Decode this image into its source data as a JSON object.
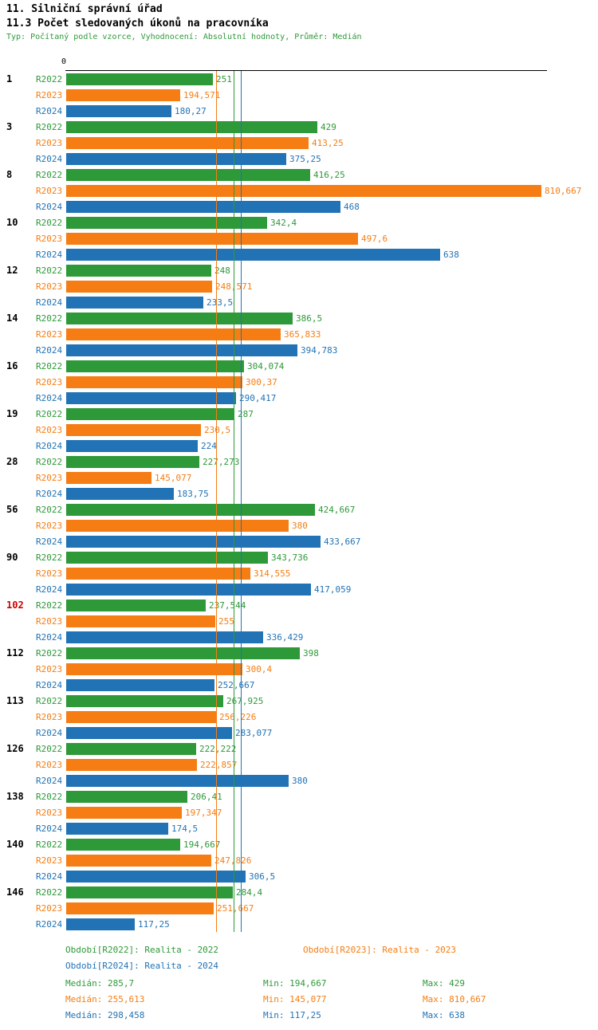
{
  "header": {
    "title_line1": "11. Silniční správní úřad",
    "title_line2": "11.3 Počet sledovaných úkonů na pracovníka",
    "subtitle": "Typ: Počítaný podle vzorce, Vyhodnocení: Absolutní hodnoty, Průměr: Medián"
  },
  "colors": {
    "r2022": "#2e9939",
    "r2023": "#f57d14",
    "r2024": "#2273b5",
    "highlight_label": "#cc0000",
    "axis": "#000000"
  },
  "chart_data": {
    "type": "bar",
    "orientation": "horizontal",
    "title": "11.3 Počet sledovaných úkonů na pracovníka",
    "xlim": [
      0,
      820
    ],
    "origin_label": "0",
    "grid": false,
    "legend_position": "bottom",
    "series": [
      "R2022",
      "R2023",
      "R2024"
    ],
    "groups": [
      {
        "label": "1",
        "highlight": false,
        "values": [
          251,
          194.571,
          180.27
        ],
        "display": [
          "251",
          "194,571",
          "180,27"
        ]
      },
      {
        "label": "3",
        "highlight": false,
        "values": [
          429,
          413.25,
          375.25
        ],
        "display": [
          "429",
          "413,25",
          "375,25"
        ]
      },
      {
        "label": "8",
        "highlight": false,
        "values": [
          416.25,
          810.667,
          468
        ],
        "display": [
          "416,25",
          "810,667",
          "468"
        ]
      },
      {
        "label": "10",
        "highlight": false,
        "values": [
          342.4,
          497.6,
          638
        ],
        "display": [
          "342,4",
          "497,6",
          "638"
        ]
      },
      {
        "label": "12",
        "highlight": false,
        "values": [
          248,
          248.571,
          233.5
        ],
        "display": [
          "248",
          "248,571",
          "233,5"
        ]
      },
      {
        "label": "14",
        "highlight": false,
        "values": [
          386.5,
          365.833,
          394.783
        ],
        "display": [
          "386,5",
          "365,833",
          "394,783"
        ]
      },
      {
        "label": "16",
        "highlight": false,
        "values": [
          304.074,
          300.37,
          290.417
        ],
        "display": [
          "304,074",
          "300,37",
          "290,417"
        ]
      },
      {
        "label": "19",
        "highlight": false,
        "values": [
          287,
          230.5,
          224
        ],
        "display": [
          "287",
          "230,5",
          "224"
        ]
      },
      {
        "label": "28",
        "highlight": false,
        "values": [
          227.273,
          145.077,
          183.75
        ],
        "display": [
          "227,273",
          "145,077",
          "183,75"
        ]
      },
      {
        "label": "56",
        "highlight": false,
        "values": [
          424.667,
          380,
          433.667
        ],
        "display": [
          "424,667",
          "380",
          "433,667"
        ]
      },
      {
        "label": "90",
        "highlight": false,
        "values": [
          343.736,
          314.555,
          417.059
        ],
        "display": [
          "343,736",
          "314,555",
          "417,059"
        ]
      },
      {
        "label": "102",
        "highlight": true,
        "values": [
          237.544,
          255,
          336.429
        ],
        "display": [
          "237,544",
          "255",
          "336,429"
        ]
      },
      {
        "label": "112",
        "highlight": false,
        "values": [
          398,
          300.4,
          252.667
        ],
        "display": [
          "398",
          "300,4",
          "252,667"
        ]
      },
      {
        "label": "113",
        "highlight": false,
        "values": [
          267.925,
          256.226,
          283.077
        ],
        "display": [
          "267,925",
          "256,226",
          "283,077"
        ]
      },
      {
        "label": "126",
        "highlight": false,
        "values": [
          222.222,
          222.857,
          380
        ],
        "display": [
          "222,222",
          "222,857",
          "380"
        ]
      },
      {
        "label": "138",
        "highlight": false,
        "values": [
          206.41,
          197.347,
          174.5
        ],
        "display": [
          "206,41",
          "197,347",
          "174,5"
        ]
      },
      {
        "label": "140",
        "highlight": false,
        "values": [
          194.667,
          247.826,
          306.5
        ],
        "display": [
          "194,667",
          "247,826",
          "306,5"
        ]
      },
      {
        "label": "146",
        "highlight": false,
        "values": [
          284.4,
          251.667,
          117.25
        ],
        "display": [
          "284,4",
          "251,667",
          "117,25"
        ]
      }
    ],
    "medians": [
      {
        "series": "R2022",
        "value": 285.7
      },
      {
        "series": "R2023",
        "value": 255.613
      },
      {
        "series": "R2024",
        "value": 298.458
      }
    ]
  },
  "legend": [
    {
      "series": "R2022",
      "label": "Období[R2022]: Realita - 2022"
    },
    {
      "series": "R2023",
      "label": "Období[R2023]: Realita - 2023"
    },
    {
      "series": "R2024",
      "label": "Období[R2024]: Realita - 2024"
    }
  ],
  "stats": [
    {
      "series": "R2022",
      "median": "Medián: 285,7",
      "min": "Min: 194,667",
      "max": "Max: 429"
    },
    {
      "series": "R2023",
      "median": "Medián: 255,613",
      "min": "Min: 145,077",
      "max": "Max: 810,667"
    },
    {
      "series": "R2024",
      "median": "Medián: 298,458",
      "min": "Min: 117,25",
      "max": "Max: 638"
    }
  ]
}
